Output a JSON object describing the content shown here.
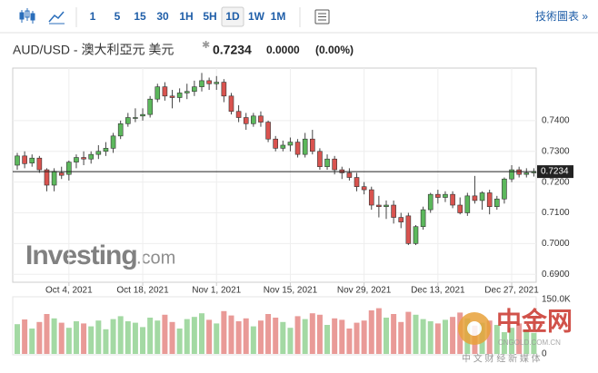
{
  "toolbar": {
    "intervals": [
      "1",
      "5",
      "15",
      "30",
      "1H",
      "5H",
      "1D",
      "1W",
      "1M"
    ],
    "selected": "1D",
    "link": "技術圖表 »"
  },
  "header": {
    "title": "AUD/USD - 澳大利亞元 美元",
    "price": "0.7234",
    "change": "0.0000",
    "change_pct": "(0.00%)"
  },
  "watermarks": {
    "brand": "Investing",
    "suffix": ".com",
    "logo": "中金网",
    "logo_domain": "CNGOLD.COM.CN",
    "logo_tagline": "中 文 财 经 新 媒 体"
  },
  "chart_data": {
    "type": "candlestick",
    "x": [
      "2021-09-23",
      "2021-09-24",
      "2021-09-27",
      "2021-09-28",
      "2021-09-29",
      "2021-09-30",
      "2021-10-01",
      "2021-10-04",
      "2021-10-05",
      "2021-10-06",
      "2021-10-07",
      "2021-10-08",
      "2021-10-11",
      "2021-10-12",
      "2021-10-13",
      "2021-10-14",
      "2021-10-15",
      "2021-10-18",
      "2021-10-19",
      "2021-10-20",
      "2021-10-21",
      "2021-10-22",
      "2021-10-25",
      "2021-10-26",
      "2021-10-27",
      "2021-10-28",
      "2021-10-29",
      "2021-11-01",
      "2021-11-02",
      "2021-11-03",
      "2021-11-04",
      "2021-11-05",
      "2021-11-08",
      "2021-11-09",
      "2021-11-10",
      "2021-11-11",
      "2021-11-12",
      "2021-11-15",
      "2021-11-16",
      "2021-11-17",
      "2021-11-18",
      "2021-11-19",
      "2021-11-22",
      "2021-11-23",
      "2021-11-24",
      "2021-11-25",
      "2021-11-26",
      "2021-11-29",
      "2021-11-30",
      "2021-12-01",
      "2021-12-02",
      "2021-12-03",
      "2021-12-06",
      "2021-12-07",
      "2021-12-08",
      "2021-12-09",
      "2021-12-10",
      "2021-12-13",
      "2021-12-14",
      "2021-12-15",
      "2021-12-16",
      "2021-12-17",
      "2021-12-20",
      "2021-12-21",
      "2021-12-22",
      "2021-12-23",
      "2021-12-24",
      "2021-12-27",
      "2021-12-28",
      "2021-12-29",
      "2021-12-30"
    ],
    "open": [
      0.7255,
      0.7285,
      0.7262,
      0.7278,
      0.724,
      0.719,
      0.723,
      0.7225,
      0.7265,
      0.728,
      0.7275,
      0.729,
      0.73,
      0.731,
      0.735,
      0.739,
      0.741,
      0.7415,
      0.742,
      0.747,
      0.751,
      0.748,
      0.7475,
      0.749,
      0.7495,
      0.751,
      0.753,
      0.752,
      0.7525,
      0.748,
      0.743,
      0.741,
      0.739,
      0.7415,
      0.7395,
      0.734,
      0.731,
      0.732,
      0.733,
      0.729,
      0.734,
      0.73,
      0.725,
      0.7275,
      0.724,
      0.723,
      0.7215,
      0.7185,
      0.7175,
      0.7125,
      0.712,
      0.7125,
      0.7085,
      0.709,
      0.7,
      0.7055,
      0.711,
      0.716,
      0.715,
      0.716,
      0.7125,
      0.71,
      0.7155,
      0.714,
      0.7165,
      0.712,
      0.7145,
      0.721,
      0.724,
      0.7225,
      0.723
    ],
    "high": [
      0.7295,
      0.73,
      0.729,
      0.7285,
      0.7245,
      0.7245,
      0.725,
      0.727,
      0.729,
      0.73,
      0.73,
      0.732,
      0.733,
      0.736,
      0.74,
      0.7425,
      0.744,
      0.744,
      0.748,
      0.752,
      0.7525,
      0.75,
      0.7505,
      0.752,
      0.753,
      0.7555,
      0.754,
      0.7545,
      0.7535,
      0.749,
      0.745,
      0.7425,
      0.7425,
      0.743,
      0.74,
      0.735,
      0.7335,
      0.7345,
      0.734,
      0.736,
      0.737,
      0.731,
      0.729,
      0.7285,
      0.725,
      0.7245,
      0.723,
      0.72,
      0.7185,
      0.7155,
      0.714,
      0.714,
      0.71,
      0.71,
      0.706,
      0.712,
      0.7165,
      0.7175,
      0.717,
      0.717,
      0.715,
      0.7165,
      0.722,
      0.717,
      0.7175,
      0.7155,
      0.7215,
      0.7255,
      0.725,
      0.7245,
      0.7245
    ],
    "low": [
      0.724,
      0.7245,
      0.725,
      0.723,
      0.717,
      0.717,
      0.721,
      0.7205,
      0.7245,
      0.7255,
      0.726,
      0.7275,
      0.7285,
      0.7295,
      0.734,
      0.738,
      0.7395,
      0.74,
      0.741,
      0.746,
      0.7465,
      0.744,
      0.746,
      0.747,
      0.748,
      0.7495,
      0.75,
      0.75,
      0.746,
      0.742,
      0.7395,
      0.737,
      0.738,
      0.738,
      0.733,
      0.73,
      0.73,
      0.73,
      0.728,
      0.728,
      0.729,
      0.724,
      0.724,
      0.7225,
      0.721,
      0.7205,
      0.717,
      0.716,
      0.711,
      0.7085,
      0.708,
      0.7065,
      0.705,
      0.6995,
      0.6995,
      0.7045,
      0.71,
      0.713,
      0.7135,
      0.7115,
      0.7095,
      0.709,
      0.713,
      0.711,
      0.7095,
      0.711,
      0.713,
      0.72,
      0.7215,
      0.7215,
      0.7218
    ],
    "close": [
      0.7285,
      0.726,
      0.7278,
      0.724,
      0.719,
      0.7235,
      0.7222,
      0.7265,
      0.728,
      0.7275,
      0.729,
      0.73,
      0.731,
      0.735,
      0.739,
      0.741,
      0.741,
      0.742,
      0.747,
      0.751,
      0.748,
      0.7475,
      0.749,
      0.7495,
      0.751,
      0.753,
      0.752,
      0.7525,
      0.748,
      0.743,
      0.741,
      0.739,
      0.7415,
      0.7395,
      0.734,
      0.731,
      0.732,
      0.733,
      0.729,
      0.734,
      0.73,
      0.725,
      0.7275,
      0.724,
      0.723,
      0.7215,
      0.7185,
      0.7175,
      0.7125,
      0.712,
      0.7125,
      0.7085,
      0.707,
      0.7,
      0.7055,
      0.711,
      0.716,
      0.715,
      0.716,
      0.7125,
      0.71,
      0.7155,
      0.714,
      0.7165,
      0.712,
      0.7145,
      0.721,
      0.724,
      0.7225,
      0.723,
      0.7234
    ],
    "volume": [
      82000,
      95000,
      70000,
      88000,
      110000,
      98000,
      86000,
      72000,
      90000,
      84000,
      76000,
      92000,
      68000,
      96000,
      104000,
      90000,
      86000,
      74000,
      100000,
      92000,
      108000,
      88000,
      70000,
      96000,
      102000,
      112000,
      94000,
      84000,
      118000,
      106000,
      90000,
      98000,
      76000,
      92000,
      110000,
      100000,
      88000,
      72000,
      104000,
      96000,
      112000,
      108000,
      80000,
      98000,
      94000,
      70000,
      86000,
      92000,
      120000,
      126000,
      100000,
      110000,
      88000,
      116000,
      108000,
      96000,
      90000,
      84000,
      94000,
      102000,
      114000,
      98000,
      78000,
      86000,
      92000,
      80000,
      60000,
      72000,
      84000,
      66000,
      58000
    ],
    "up_color": "#5cb85c",
    "down_color": "#d9534f",
    "up_volume_color": "#a3d9a3",
    "down_volume_color": "#e99a97",
    "ylim": [
      0.6874,
      0.7571
    ],
    "yticks": [
      {
        "value": 0.69,
        "label": "0.6900"
      },
      {
        "value": 0.7,
        "label": "0.7000"
      },
      {
        "value": 0.71,
        "label": "0.7100"
      },
      {
        "value": 0.72,
        "label": "0.7200"
      },
      {
        "value": 0.73,
        "label": "0.7300"
      },
      {
        "value": 0.74,
        "label": "0.7400"
      }
    ],
    "xticks": [
      {
        "value": "2021-10-04",
        "label": "Oct 4, 2021"
      },
      {
        "value": "2021-10-18",
        "label": "Oct 18, 2021"
      },
      {
        "value": "2021-11-01",
        "label": "Nov 1, 2021"
      },
      {
        "value": "2021-11-15",
        "label": "Nov 15, 2021"
      },
      {
        "value": "2021-11-29",
        "label": "Nov 29, 2021"
      },
      {
        "value": "2021-12-13",
        "label": "Dec 13, 2021"
      },
      {
        "value": "2021-12-27",
        "label": "Dec 27, 2021"
      }
    ],
    "volume_ylim": [
      0,
      150000
    ],
    "volume_yticks": [
      0,
      {
        "value": 150000,
        "label": "150.0K"
      }
    ],
    "last_price": 0.7234,
    "grid": true
  }
}
